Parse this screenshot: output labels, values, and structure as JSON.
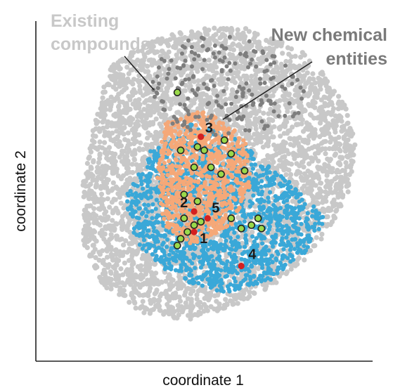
{
  "chart_data": {
    "type": "scatter",
    "title": "",
    "xlabel": "coordinate 1",
    "ylabel": "coordinate 2",
    "xticks": [],
    "yticks": [],
    "grid": false,
    "legend": "none",
    "annotations": [
      {
        "id": "existing",
        "lines": [
          "Existing",
          "compounds"
        ]
      },
      {
        "id": "new",
        "lines": [
          "New chemical",
          "entities"
        ]
      }
    ],
    "series": [
      {
        "id": "existing",
        "color": "#c8c8c8",
        "density": "dense cloud",
        "region": [
          [
            0.23,
            0.88
          ],
          [
            0.33,
            0.94
          ],
          [
            0.48,
            0.98
          ],
          [
            0.62,
            0.98
          ],
          [
            0.78,
            0.92
          ],
          [
            0.86,
            0.84
          ],
          [
            0.92,
            0.75
          ],
          [
            0.95,
            0.64
          ],
          [
            0.93,
            0.5
          ],
          [
            0.88,
            0.4
          ],
          [
            0.8,
            0.3
          ],
          [
            0.7,
            0.22
          ],
          [
            0.58,
            0.16
          ],
          [
            0.45,
            0.12
          ],
          [
            0.32,
            0.14
          ],
          [
            0.2,
            0.22
          ],
          [
            0.14,
            0.35
          ],
          [
            0.14,
            0.52
          ],
          [
            0.17,
            0.68
          ],
          [
            0.2,
            0.8
          ]
        ]
      },
      {
        "id": "new_entities",
        "color": "#7e7e7e",
        "density": "sparse",
        "region": [
          [
            0.38,
            0.92
          ],
          [
            0.5,
            0.96
          ],
          [
            0.62,
            0.95
          ],
          [
            0.74,
            0.89
          ],
          [
            0.8,
            0.8
          ],
          [
            0.78,
            0.7
          ],
          [
            0.66,
            0.68
          ],
          [
            0.52,
            0.66
          ],
          [
            0.38,
            0.7
          ],
          [
            0.34,
            0.8
          ]
        ]
      },
      {
        "id": "blue_set",
        "color": "#3aa8d8",
        "density": "dense",
        "region": [
          [
            0.34,
            0.62
          ],
          [
            0.46,
            0.7
          ],
          [
            0.6,
            0.66
          ],
          [
            0.76,
            0.52
          ],
          [
            0.86,
            0.42
          ],
          [
            0.8,
            0.32
          ],
          [
            0.7,
            0.24
          ],
          [
            0.56,
            0.2
          ],
          [
            0.42,
            0.24
          ],
          [
            0.3,
            0.34
          ],
          [
            0.26,
            0.48
          ]
        ]
      },
      {
        "id": "orange_set",
        "color": "#f5a878",
        "density": "dense",
        "region": [
          [
            0.38,
            0.7
          ],
          [
            0.5,
            0.74
          ],
          [
            0.62,
            0.66
          ],
          [
            0.64,
            0.52
          ],
          [
            0.58,
            0.4
          ],
          [
            0.46,
            0.34
          ],
          [
            0.38,
            0.4
          ],
          [
            0.36,
            0.54
          ]
        ]
      },
      {
        "id": "highlighted",
        "color": "#9ad94a",
        "edge": "#222222",
        "points": [
          [
            0.42,
            0.79
          ],
          [
            0.56,
            0.65
          ],
          [
            0.48,
            0.63
          ],
          [
            0.43,
            0.62
          ],
          [
            0.5,
            0.62
          ],
          [
            0.58,
            0.61
          ],
          [
            0.47,
            0.57
          ],
          [
            0.52,
            0.57
          ],
          [
            0.62,
            0.56
          ],
          [
            0.55,
            0.55
          ],
          [
            0.44,
            0.49
          ],
          [
            0.48,
            0.47
          ],
          [
            0.44,
            0.42
          ],
          [
            0.58,
            0.42
          ],
          [
            0.61,
            0.39
          ],
          [
            0.64,
            0.4
          ],
          [
            0.67,
            0.39
          ],
          [
            0.66,
            0.42
          ],
          [
            0.43,
            0.36
          ],
          [
            0.45,
            0.38
          ],
          [
            0.47,
            0.4
          ],
          [
            0.49,
            0.41
          ],
          [
            0.42,
            0.34
          ]
        ]
      },
      {
        "id": "labeled",
        "color": "#d42020",
        "points": [
          {
            "label": "1",
            "x": 0.47,
            "y": 0.38
          },
          {
            "label": "2",
            "x": 0.47,
            "y": 0.44
          },
          {
            "label": "3",
            "x": 0.49,
            "y": 0.66
          },
          {
            "label": "4",
            "x": 0.61,
            "y": 0.28
          },
          {
            "label": "5",
            "x": 0.51,
            "y": 0.42
          }
        ]
      }
    ]
  }
}
